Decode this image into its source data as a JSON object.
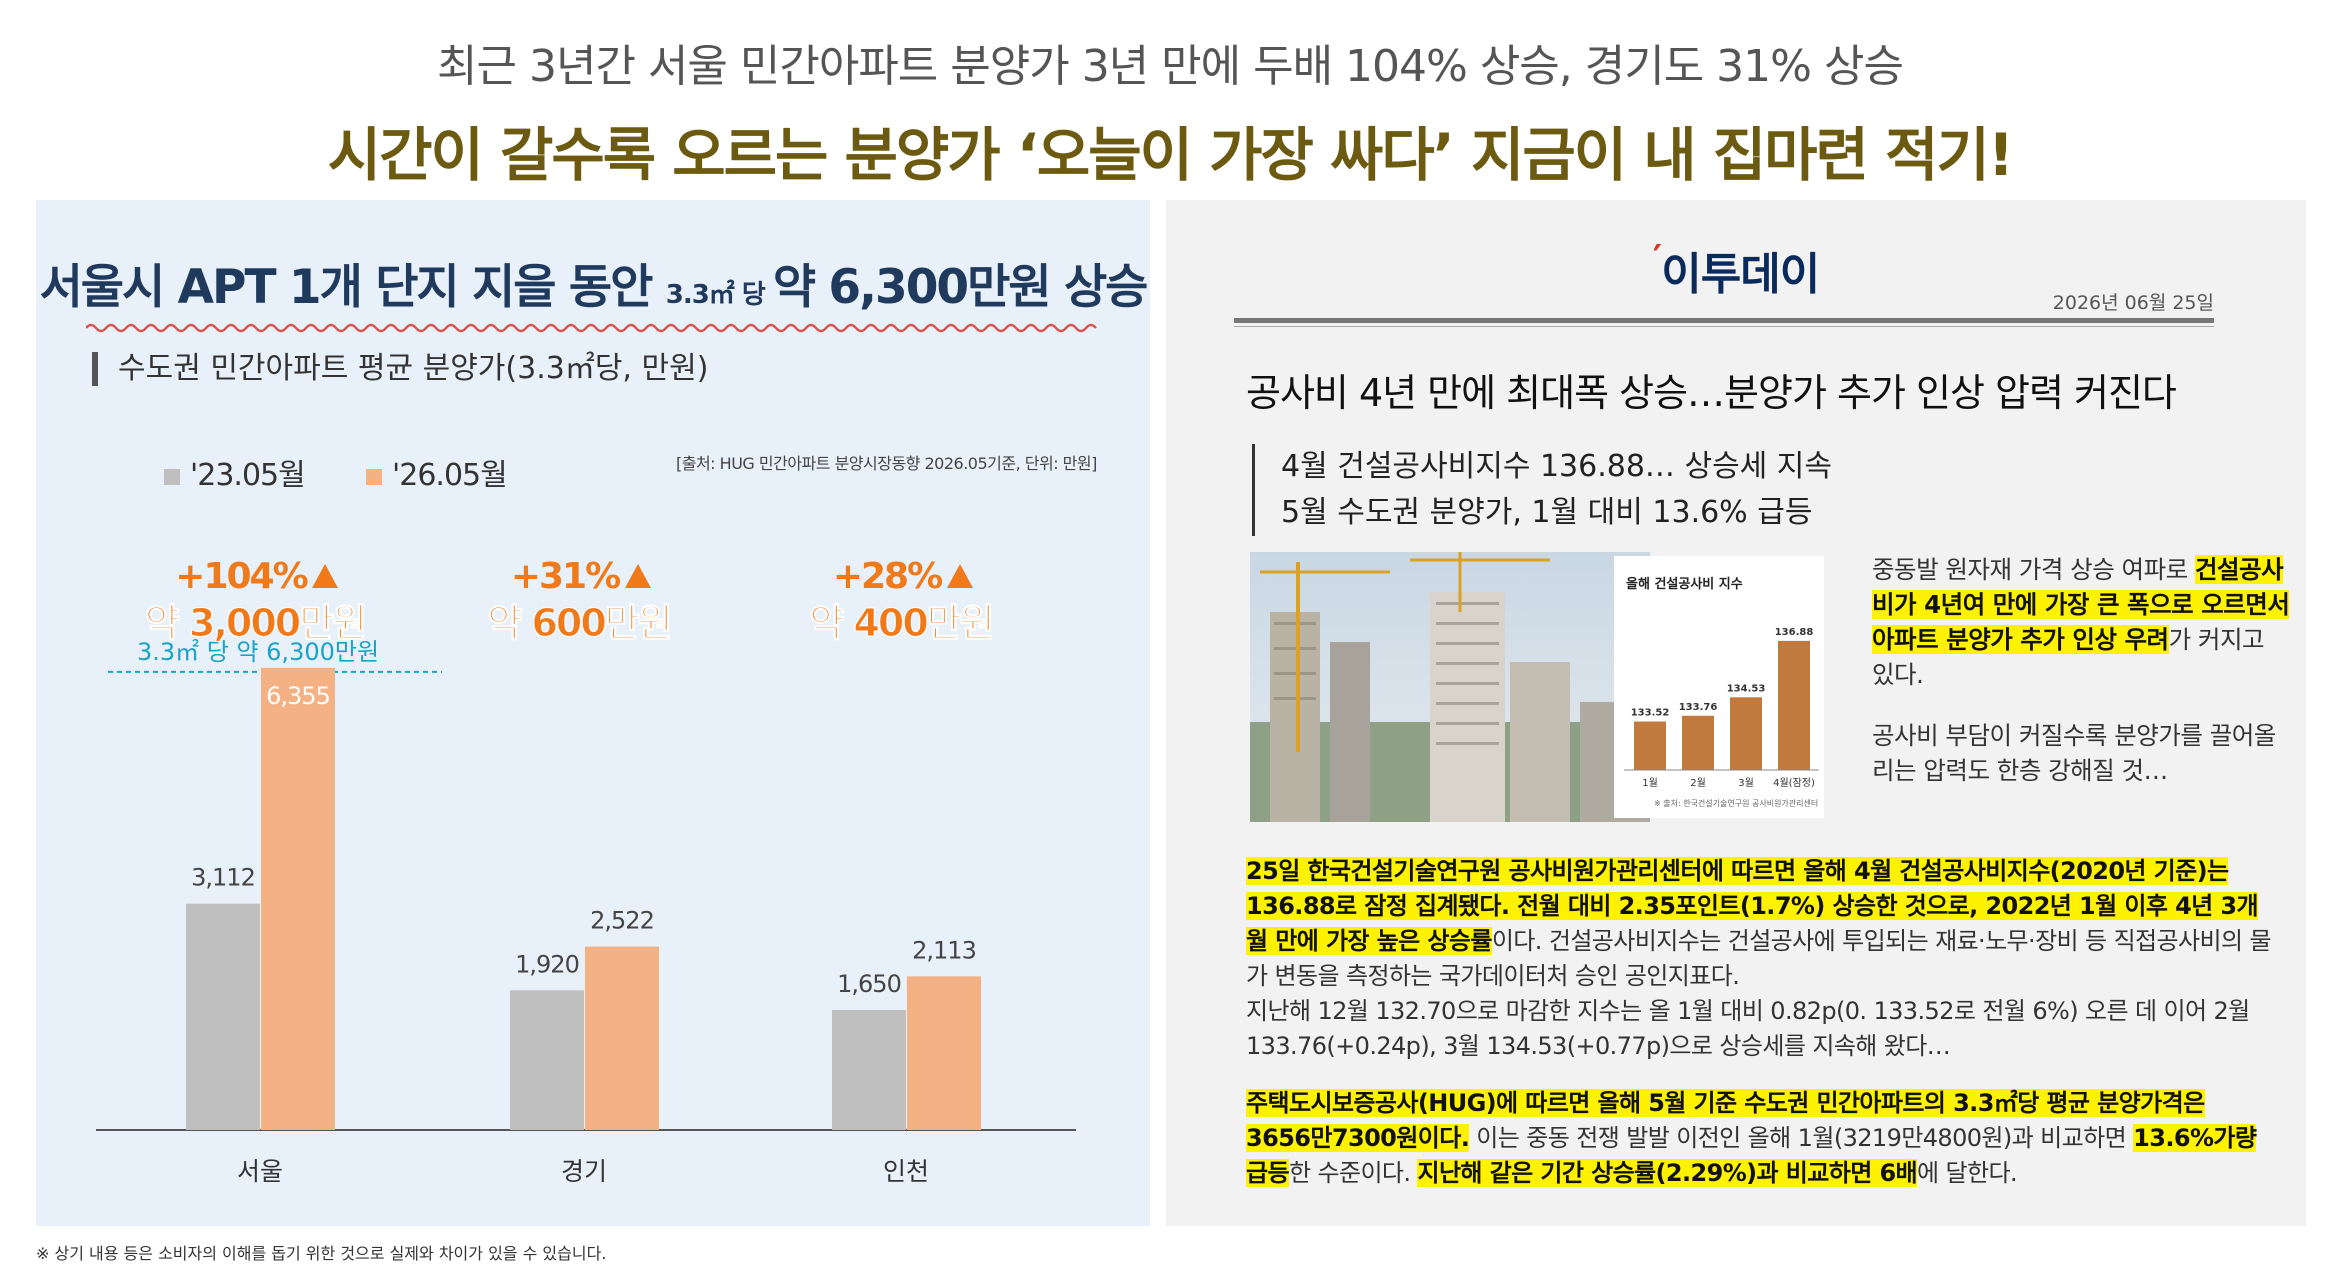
{
  "header": {
    "line1": "최근 3년간 서울 민간아파트 분양가 3년 만에 두배 104% 상승, 경기도 31% 상승",
    "line2": "시간이 갈수록 오르는 분양가 ‘오늘이 가장 싸다’ 지금이 내 집마련 적기!"
  },
  "left_panel": {
    "title_main": "서울시 APT 1개 단지 지을 동안 ",
    "title_unit": "3.3㎡ 당 ",
    "title_end": "약 6,300만원 상승",
    "subtitle": "수도권 민간아파트 평균 분양가(3.3㎡당, 만원)",
    "source": "[출처: HUG 민간아파트 분양시장동향 2026.05기준, 단위: 만원]",
    "reference_label": "3.3㎡ 당 약 6,300만원",
    "footnote": "※ 상기 내용 등은 소비자의 이해를 돕기 위한 것으로 실제와 차이가 있을 수 있습니다."
  },
  "chart_data": {
    "type": "bar",
    "categories": [
      "서울",
      "경기",
      "인천"
    ],
    "series": [
      {
        "name": "'23.05월",
        "values": [
          3112,
          1920,
          1650
        ],
        "color": "#bfbfbf"
      },
      {
        "name": "'26.05월",
        "values": [
          6355,
          2522,
          2113
        ],
        "color": "#f4b183"
      }
    ],
    "value_labels": [
      [
        "3,112",
        "1,920",
        "1,650"
      ],
      [
        "6,355",
        "2,522",
        "2,113"
      ]
    ],
    "annotations": [
      {
        "pct": "+104%",
        "amount": "약 3,000만원"
      },
      {
        "pct": "+31%",
        "amount": "약 600만원"
      },
      {
        "pct": "+28%",
        "amount": "약 400만원"
      }
    ],
    "reference_value": 6300,
    "ylim": [
      0,
      6600
    ],
    "legend_position": "top-left",
    "grid": false,
    "colors": {
      "old": "#bfbfbf",
      "new": "#f4b183",
      "accent": "#f07a1a",
      "reference": "#1aa3c8"
    }
  },
  "right_panel": {
    "logo": "이투데이",
    "date": "2026년 06월 25일",
    "headline": "공사비 4년 만에 최대폭 상승…분양가 추가 인상 압력 커진다",
    "bullets": [
      "4월 건설공사비지수 136.88… 상승세 지속",
      "5월 수도권 분양가, 1월 대비 13.6% 급등"
    ],
    "inset_chart": {
      "title": "올해 건설공사비 지수",
      "categories": [
        "1월",
        "2월",
        "3월",
        "4월(잠정)"
      ],
      "values": [
        133.52,
        133.76,
        134.53,
        136.88
      ],
      "labels": [
        "133.52",
        "133.76",
        "134.53",
        "136.88"
      ],
      "source": "※ 출처: 한국건설기술연구원 공사비원가관리센터"
    },
    "side_text": {
      "p1_a": "중동발 원자재 가격 상승 여파로 ",
      "p1_hl": "건설공사비가 4년여 만에 가장 큰 폭으로 오르면서 아파트 분양가 추가 인상 우려",
      "p1_b": "가 커지고 있다.",
      "p2": "공사비 부담이 커질수록 분양가를 끌어올리는 압력도 한층 강해질 것…"
    },
    "body1": {
      "hl": "25일 한국건설기술연구원 공사비원가관리센터에 따르면 올해 4월 건설공사비지수(2020년 기준)는 136.88로 잠정 집계됐다. 전월 대비 2.35포인트(1.7%) 상승한 것으로, 2022년 1월 이후 4년 3개월 만에 가장 높은 상승률",
      "rest": "이다. 건설공사비지수는 건설공사에 투입되는 재료·노무·장비 등 직접공사비의 물가 변동을 측정하는 국가데이터처 승인 공인지표다.",
      "line2": "지난해 12월 132.70으로 마감한 지수는 올 1월 대비 0.82p(0. 133.52로 전월 6%) 오른 데 이어 2월 133.76(+0.24p), 3월 134.53(+0.77p)으로 상승세를 지속해 왔다…"
    },
    "body2": {
      "hl1": "주택도시보증공사(HUG)에 따르면 올해 5월 기준 수도권 민간아파트의 3.3㎡당 평균 분양가격은 3656만7300원이다.",
      "t1": " 이는 중동 전쟁 발발 이전인 올해 1월(3219만4800원)과 비교하면 ",
      "hl2": "13.6%가량 급등",
      "t2": "한 수준이다. ",
      "hl3": "지난해 같은 기간 상승률(2.29%)과 비교하면 6배",
      "t3": "에 달한다."
    }
  }
}
